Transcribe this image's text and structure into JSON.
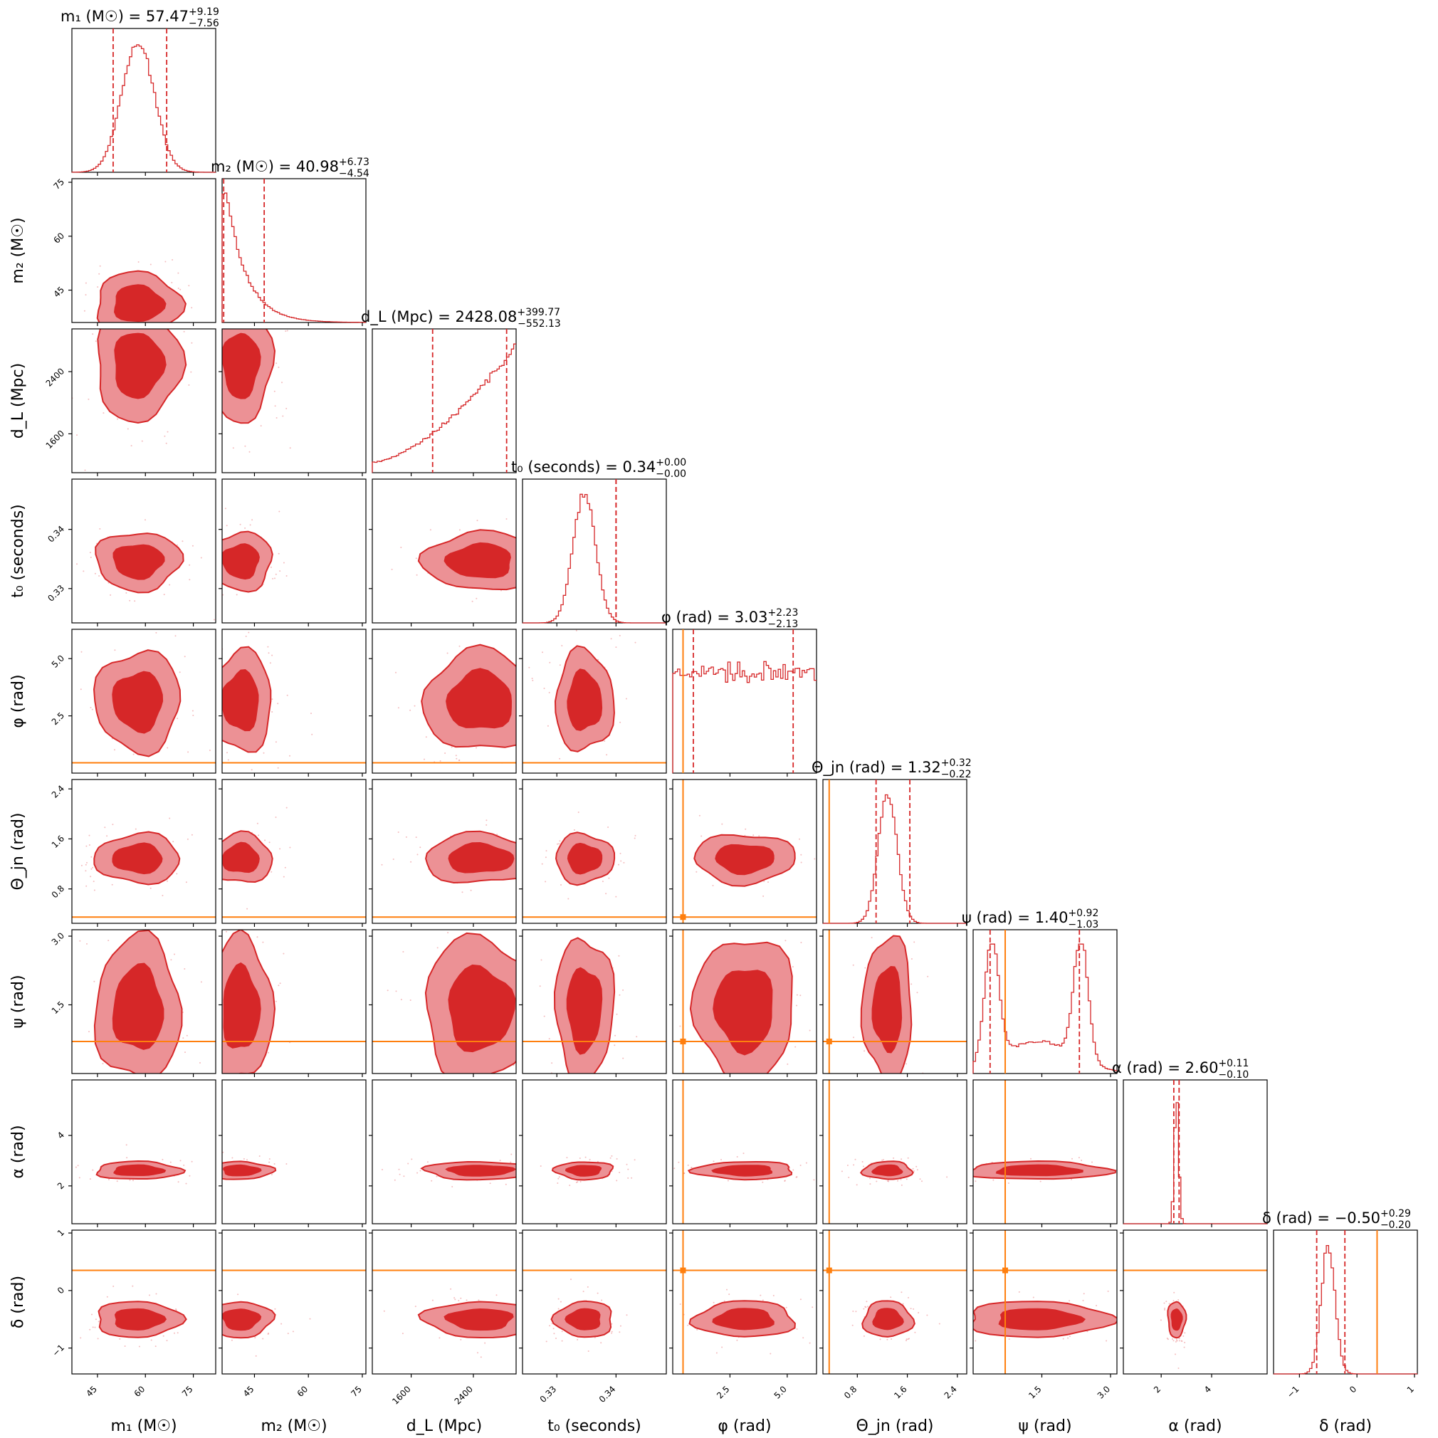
{
  "chart_data": {
    "type": "corner",
    "parameters": [
      {
        "key": "m1",
        "label": "m₁ (M☉)",
        "title": "m₁ (M☉) = 57.47",
        "median": 57.47,
        "err_plus": "+9.19",
        "err_minus": "−7.56",
        "range": [
          37,
          82
        ],
        "ticks": [
          45,
          60,
          75
        ],
        "tick_labels": [
          "45",
          "60",
          "75"
        ],
        "truth": null
      },
      {
        "key": "m2",
        "label": "m₂ (M☉)",
        "title": "m₂ (M☉) = 40.98",
        "median": 40.98,
        "err_plus": "+6.73",
        "err_minus": "−4.54",
        "range": [
          36,
          76
        ],
        "ticks": [
          45,
          60,
          75
        ],
        "tick_labels": [
          "45",
          "60",
          "75"
        ],
        "truth": null
      },
      {
        "key": "dL",
        "label": "d_L (Mpc)",
        "title": "d_L (Mpc) = 2428.08",
        "median": 2428.08,
        "err_plus": "+399.77",
        "err_minus": "−552.13",
        "range": [
          1100,
          2950
        ],
        "ticks": [
          1600,
          2400
        ],
        "tick_labels": [
          "1600",
          "2400"
        ],
        "truth": null
      },
      {
        "key": "t0",
        "label": "t₀ (seconds)",
        "title": "t₀ (seconds) = 0.34",
        "median": 0.34,
        "err_plus": "+0.00",
        "err_minus": "−0.00",
        "range": [
          0.3242,
          0.3485
        ],
        "ticks": [
          0.33,
          0.34
        ],
        "tick_labels": [
          "0.33",
          "0.34"
        ],
        "truth": null
      },
      {
        "key": "phi",
        "label": "φ (rad)",
        "title": "φ (rad) = 3.03",
        "median": 3.03,
        "err_plus": "+2.23",
        "err_minus": "−2.13",
        "range": [
          0,
          6.28
        ],
        "ticks": [
          2.5,
          5.0
        ],
        "tick_labels": [
          "2.5",
          "5.0"
        ],
        "truth": 0.45
      },
      {
        "key": "theta",
        "label": "Θ_jn (rad)",
        "title": "Θ_jn (rad) = 1.32",
        "median": 1.32,
        "err_plus": "+0.32",
        "err_minus": "−0.22",
        "range": [
          0.25,
          2.55
        ],
        "ticks": [
          0.8,
          1.6,
          2.4
        ],
        "tick_labels": [
          "0.8",
          "1.6",
          "2.4"
        ],
        "truth": 0.35
      },
      {
        "key": "psi",
        "label": "ψ (rad)",
        "title": "ψ (rad) = 1.40",
        "median": 1.4,
        "err_plus": "+0.92",
        "err_minus": "−1.03",
        "range": [
          0,
          3.14
        ],
        "ticks": [
          1.5,
          3.0
        ],
        "tick_labels": [
          "1.5",
          "3.0"
        ],
        "truth": 0.7
      },
      {
        "key": "alpha",
        "label": "α (rad)",
        "title": "α (rad) = 2.60",
        "median": 2.6,
        "err_plus": "+0.11",
        "err_minus": "−0.10",
        "range": [
          0.5,
          6.2
        ],
        "ticks": [
          2,
          4
        ],
        "tick_labels": [
          "2",
          "4"
        ],
        "truth": null
      },
      {
        "key": "delta",
        "label": "δ (rad)",
        "title": "δ (rad) = −0.50",
        "median": -0.5,
        "err_plus": "+0.29",
        "err_minus": "−0.20",
        "range": [
          -1.45,
          1.05
        ],
        "ticks": [
          -1,
          0,
          1
        ],
        "tick_labels": [
          "−1",
          "0",
          "1"
        ],
        "truth": 0.35
      }
    ],
    "colors": {
      "contour_fill": "#d62728",
      "contour_inner": "#d62728",
      "contour_outer": "#ec9195",
      "hist_line": "#d62728",
      "quantile_line": "#d62728",
      "truth_line": "#ff7f0e"
    }
  }
}
